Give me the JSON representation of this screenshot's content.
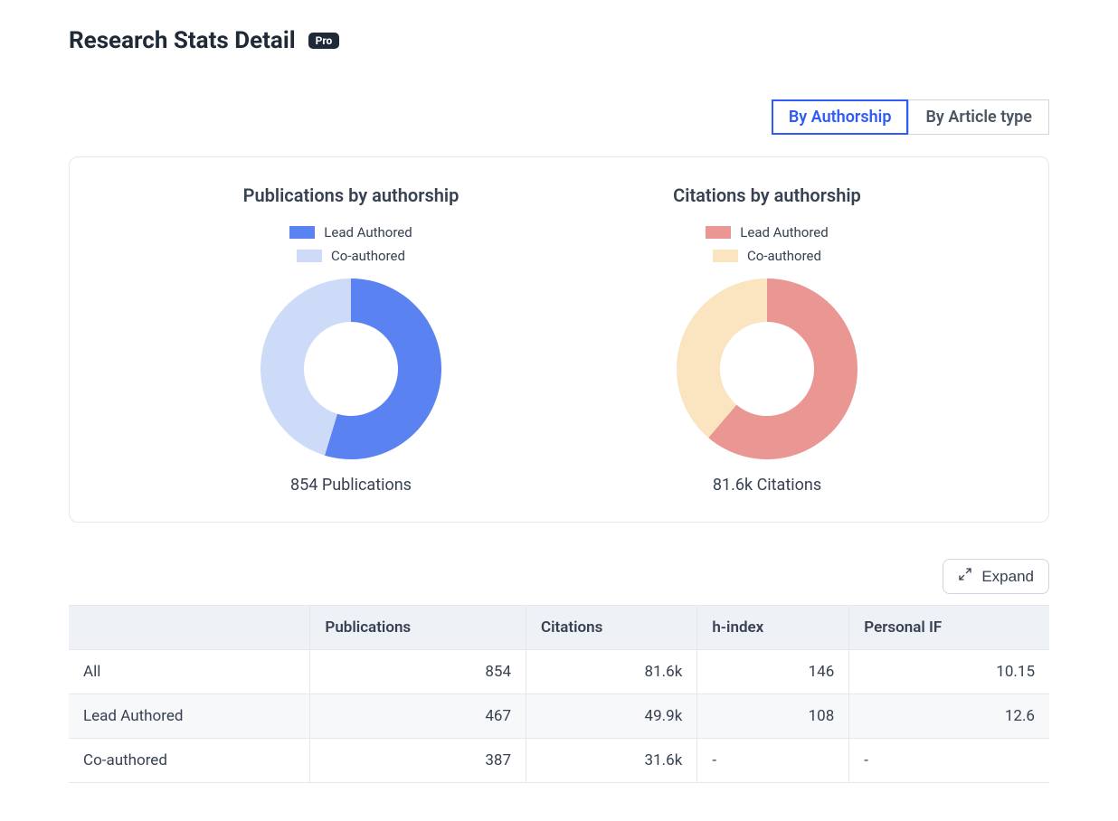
{
  "header": {
    "title": "Research Stats Detail",
    "badge": "Pro",
    "badge_bg": "#1f2937",
    "badge_text_color": "#ffffff"
  },
  "tabs": {
    "items": [
      {
        "label": "By Authorship",
        "active": true
      },
      {
        "label": "By Article type",
        "active": false
      }
    ],
    "active_color": "#2f5cf7",
    "inactive_color": "#4b5563",
    "border_color": "#d1d5db"
  },
  "panel": {
    "border_color": "#e5e7eb",
    "background": "#ffffff"
  },
  "charts": {
    "publications": {
      "type": "donut",
      "title": "Publications by authorship",
      "legend": [
        {
          "label": "Lead Authored",
          "color": "#5a82f0"
        },
        {
          "label": "Co-authored",
          "color": "#cddbf8"
        }
      ],
      "segments": [
        {
          "label": "Lead Authored",
          "value": 467,
          "color": "#5a82f0"
        },
        {
          "label": "Co-authored",
          "value": 387,
          "color": "#cddbf8"
        }
      ],
      "total": 854,
      "caption": "854 Publications",
      "inner_radius_ratio": 0.52,
      "start_angle_deg": 0,
      "title_fontsize": 20,
      "title_color": "#374151"
    },
    "citations": {
      "type": "donut",
      "title": "Citations by authorship",
      "legend": [
        {
          "label": "Lead Authored",
          "color": "#ea9693"
        },
        {
          "label": "Co-authored",
          "color": "#fbe4c0"
        }
      ],
      "segments": [
        {
          "label": "Lead Authored",
          "value": 49900,
          "color": "#ea9693"
        },
        {
          "label": "Co-authored",
          "value": 31600,
          "color": "#fbe4c0"
        }
      ],
      "total": 81600,
      "caption": "81.6k Citations",
      "inner_radius_ratio": 0.52,
      "start_angle_deg": 0,
      "title_fontsize": 20,
      "title_color": "#374151"
    }
  },
  "expand": {
    "label": "Expand"
  },
  "table": {
    "columns": [
      "",
      "Publications",
      "Citations",
      "h-index",
      "Personal IF"
    ],
    "column_align": [
      "left",
      "right",
      "right",
      "right",
      "right"
    ],
    "rows": [
      [
        "All",
        "854",
        "81.6k",
        "146",
        "10.15"
      ],
      [
        "Lead Authored",
        "467",
        "49.9k",
        "108",
        "12.6"
      ],
      [
        "Co-authored",
        "387",
        "31.6k",
        "-",
        "-"
      ]
    ],
    "header_bg": "#eef1f5",
    "row_alt_bg": "#f7f8fa",
    "border_color": "#e5e7eb",
    "text_color": "#374151",
    "fontsize": 17
  }
}
